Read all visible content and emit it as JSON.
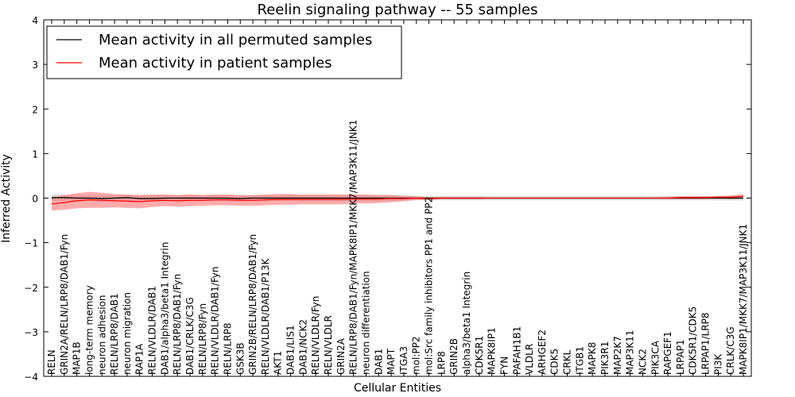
{
  "chart_data": {
    "type": "line",
    "title": "Reelin signaling pathway -- 55 samples",
    "xlabel": "Cellular Entities",
    "ylabel": "Inferred Activity",
    "ylim": [
      -4,
      4
    ],
    "yticks": [
      "4",
      "3",
      "2",
      "1",
      "0",
      "−1",
      "−2",
      "−3",
      "−4"
    ],
    "legend_placement": "top-left",
    "categories": [
      "RELN",
      "GRIN2A/RELN/LRP8/DAB1/Fyn",
      "MAP1B",
      "long-term memory",
      "neuron adhesion",
      "RELN/LRP8/DAB1",
      "neuron migration",
      "RAP1A",
      "RELN/VLDLR/DAB1",
      "DAB1/alpha3/beta1 Integrin",
      "RELN/LRP8/DAB1/Fyn",
      "DAB1/CRLK/C3G",
      "RELN/LRP8/Fyn",
      "RELN/VLDLR/DAB1/Fyn",
      "RELN/LRP8",
      "GSK3B",
      "GRIN2B/RELN/LRP8/DAB1/Fyn",
      "RELN/VLDLR/DAB1/P13K",
      "AKT1",
      "DAB1/LIS1",
      "DAB1/NCK2",
      "RELN/VLDLR/Fyn",
      "RELN/VLDLR",
      "GRIN2A",
      "RELN/LRP8/DAB1/Fyn/MAPK8IP1/MKK7/MAP3K11/JNK1",
      "neuron differentiation",
      "DAB1",
      "MAPT",
      "ITGA3",
      "mol:PP2",
      "mol:Src family inhibitors PP1 and PP2",
      "LRP8",
      "GRIN2B",
      "alpha3/beta1 Integrin",
      "CDK5R1",
      "MAPK8IP1",
      "FYN",
      "PAFAH1B1",
      "VLDLR",
      "ARHGEF2",
      "CDK5",
      "CRKL",
      "ITGB1",
      "MAPK8",
      "PIK3R1",
      "MAP2K7",
      "MAP3K11",
      "NCK2",
      "PIK3CA",
      "RAPGEF1",
      "LRPAP1",
      "CDK5R1/CDK5",
      "LRPAP1/LRP8",
      "PI3K",
      "CRLK/C3G",
      "MAPK8IP1/MKK7/MAP3K11/JNK1"
    ],
    "series": [
      {
        "name": "Mean activity in all permuted samples",
        "color": "#000000",
        "band_color": "#bbbbbb",
        "values": [
          0.01,
          0.01,
          0.0,
          0.0,
          -0.01,
          0.0,
          0.01,
          -0.01,
          -0.01,
          0.0,
          0.0,
          0.0,
          0.0,
          0.0,
          0.0,
          -0.01,
          0.0,
          0.0,
          0.0,
          0.0,
          0.0,
          0.0,
          0.0,
          0.0,
          0.0,
          0.0,
          0.0,
          0.0,
          0.0,
          0.0,
          0.0,
          0.0,
          0.0,
          0.0,
          0.0,
          0.0,
          0.0,
          0.0,
          0.0,
          0.0,
          0.0,
          0.0,
          0.0,
          0.0,
          0.0,
          0.0,
          0.0,
          0.0,
          0.0,
          0.0,
          0.0,
          0.0,
          0.0,
          0.0,
          0.0,
          0.0
        ],
        "band": [
          0.07,
          0.07,
          0.07,
          0.07,
          0.07,
          0.07,
          0.07,
          0.07,
          0.07,
          0.07,
          0.07,
          0.07,
          0.07,
          0.07,
          0.07,
          0.07,
          0.07,
          0.07,
          0.07,
          0.07,
          0.07,
          0.07,
          0.07,
          0.07,
          0.07,
          0.07,
          0.07,
          0.07,
          0.06,
          0.05,
          0.05,
          0.05,
          0.05,
          0.05,
          0.05,
          0.05,
          0.05,
          0.05,
          0.05,
          0.05,
          0.05,
          0.05,
          0.05,
          0.05,
          0.05,
          0.05,
          0.05,
          0.05,
          0.05,
          0.05,
          0.05,
          0.05,
          0.05,
          0.05,
          0.05,
          0.05
        ]
      },
      {
        "name": "Mean activity in patient samples",
        "color": "#ff0000",
        "band_color": "#ff6666",
        "values": [
          -0.13,
          -0.1,
          -0.06,
          -0.04,
          -0.05,
          -0.06,
          -0.07,
          -0.08,
          -0.06,
          -0.05,
          -0.06,
          -0.05,
          -0.05,
          -0.04,
          -0.04,
          -0.05,
          -0.05,
          -0.04,
          -0.03,
          -0.03,
          -0.03,
          -0.03,
          -0.03,
          -0.03,
          -0.02,
          -0.02,
          -0.02,
          -0.01,
          -0.01,
          0.0,
          -0.01,
          0.0,
          0.0,
          0.0,
          0.0,
          0.0,
          0.0,
          0.0,
          0.0,
          0.0,
          0.0,
          0.0,
          0.0,
          0.0,
          0.0,
          0.0,
          0.0,
          0.0,
          0.0,
          0.0,
          0.01,
          0.01,
          0.01,
          0.02,
          0.02,
          0.04
        ],
        "band": [
          0.15,
          0.16,
          0.17,
          0.18,
          0.17,
          0.15,
          0.15,
          0.15,
          0.14,
          0.13,
          0.13,
          0.13,
          0.12,
          0.12,
          0.12,
          0.12,
          0.12,
          0.12,
          0.12,
          0.12,
          0.11,
          0.11,
          0.11,
          0.11,
          0.1,
          0.1,
          0.09,
          0.08,
          0.06,
          0.04,
          0.03,
          0.02,
          0.02,
          0.02,
          0.02,
          0.01,
          0.01,
          0.01,
          0.01,
          0.01,
          0.01,
          0.01,
          0.01,
          0.01,
          0.01,
          0.01,
          0.01,
          0.01,
          0.01,
          0.02,
          0.03,
          0.03,
          0.03,
          0.03,
          0.04,
          0.05
        ]
      }
    ]
  }
}
